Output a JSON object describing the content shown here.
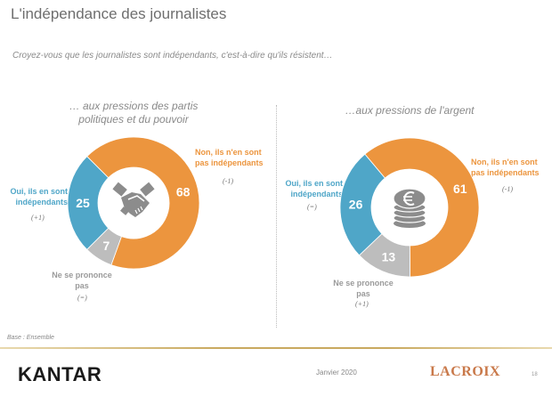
{
  "header": {
    "title": "L'indépendance des journalistes",
    "question": "Croyez-vous que les journalistes sont indépendants, c'est-à-dire qu'ils résistent…"
  },
  "colors": {
    "non": "#EC953E",
    "oui": "#4FA6C8",
    "nsp": "#BDBDBD",
    "icon": "#8c8c8c"
  },
  "chart_data": [
    {
      "type": "pie",
      "variant": "donut",
      "title": "… aux pressions des partis politiques et du pouvoir",
      "center_icon": "handshake-icon",
      "unit": "%",
      "slices": [
        {
          "key": "non",
          "label": "Non, ils n'en sont pas indépendants",
          "value": 68,
          "change": "(-1)"
        },
        {
          "key": "nsp",
          "label": "Ne se prononce pas",
          "value": 7,
          "change": "(=)"
        },
        {
          "key": "oui",
          "label": "Oui, ils en sont indépendants",
          "value": 25,
          "change": "(+1)"
        }
      ]
    },
    {
      "type": "pie",
      "variant": "donut",
      "title": "…aux pressions de l'argent",
      "center_icon": "euro-coins-icon",
      "unit": "%",
      "slices": [
        {
          "key": "non",
          "label": "Non, ils n'en sont pas indépendants",
          "value": 61,
          "change": "(-1)"
        },
        {
          "key": "nsp",
          "label": "Ne se prononce pas",
          "value": 13,
          "change": "(+1)"
        },
        {
          "key": "oui",
          "label": "Oui, ils en sont indépendants",
          "value": 26,
          "change": "(=)"
        }
      ]
    }
  ],
  "labels": {
    "non_line1": "Non, ils n'en sont",
    "non_line2": "pas indépendants",
    "oui_line1": "Oui, ils en sont",
    "oui_line2": "indépendants",
    "nsp_line1": "Ne se prononce",
    "nsp_line2": "pas"
  },
  "chart_titles": {
    "left_line1": "… aux pressions des partis",
    "left_line2": "politiques et du pouvoir",
    "right": "…aux pressions de l'argent"
  },
  "footer": {
    "base": "Base : Ensemble",
    "brand": "KANTAR",
    "date": "Janvier 2020",
    "partner": "LACROIX",
    "page": "18"
  }
}
